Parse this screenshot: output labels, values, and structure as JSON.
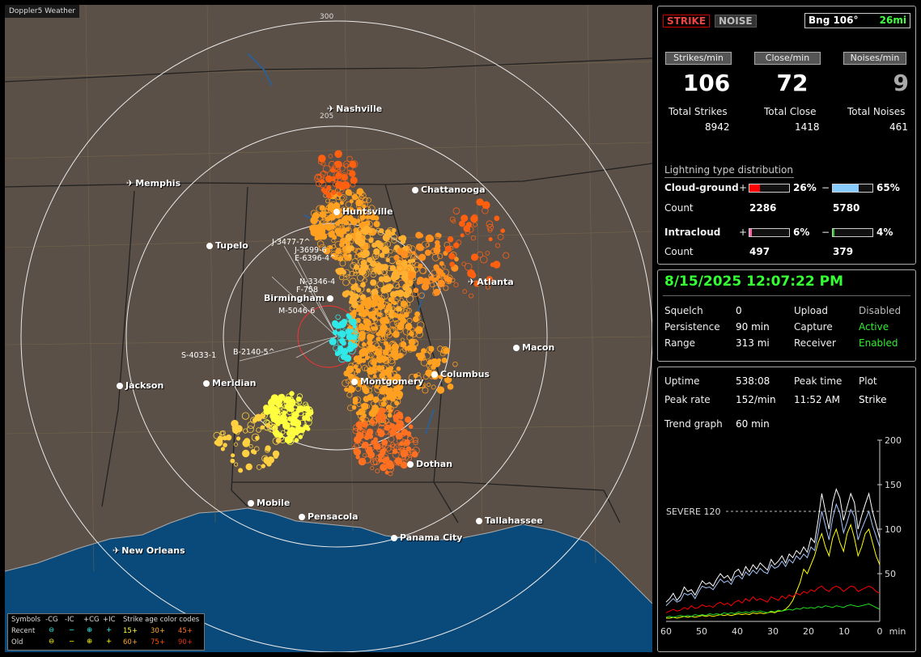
{
  "map": {
    "title": "Doppler5 Weather",
    "ring_labels": [
      {
        "text": "300",
        "id": "ring-300"
      },
      {
        "text": "205",
        "id": "ring-205"
      }
    ],
    "cities": [
      {
        "name": "Nashville",
        "icon": "airport-icon"
      },
      {
        "name": "Memphis",
        "icon": "airport-icon"
      },
      {
        "name": "Chattanooga",
        "icon": "city-dot"
      },
      {
        "name": "Huntsville",
        "icon": "city-dot"
      },
      {
        "name": "Tupelo",
        "icon": "city-dot"
      },
      {
        "name": "Atlanta",
        "icon": "airport-icon"
      },
      {
        "name": "Birmingham",
        "icon": "city-dot"
      },
      {
        "name": "Macon",
        "icon": "city-dot"
      },
      {
        "name": "Jackson",
        "icon": "city-dot"
      },
      {
        "name": "Meridian",
        "icon": "city-dot"
      },
      {
        "name": "Montgomery",
        "icon": "city-dot"
      },
      {
        "name": "Columbus",
        "icon": "city-dot"
      },
      {
        "name": "Dothan",
        "icon": "city-dot"
      },
      {
        "name": "Mobile",
        "icon": "city-dot"
      },
      {
        "name": "Pensacola",
        "icon": "city-dot"
      },
      {
        "name": "Tallahassee",
        "icon": "city-dot"
      },
      {
        "name": "Panama City",
        "icon": "city-dot"
      },
      {
        "name": "New Orleans",
        "icon": "airport-icon"
      }
    ],
    "sensor_labels": [
      "J-3477-7^",
      "J-3699-6",
      "E-6396-4^",
      "N-3346-4",
      "F-758",
      "M-5046-6",
      "S-4033-1",
      "B-2140-5^"
    ],
    "legend": {
      "symbols_label": "Symbols",
      "cols": [
        "-CG",
        "-IC",
        "+CG",
        "+IC"
      ],
      "recent_label": "Recent",
      "old_label": "Old",
      "age_label": "Strike age color codes",
      "recent_ages": [
        "15+",
        "30+",
        "45+"
      ],
      "old_ages": [
        "60+",
        "75+",
        "90+"
      ],
      "age_colors": [
        "#ffff40",
        "#ffb030",
        "#ff7020",
        "#ffa020",
        "#ff5010",
        "#e03010"
      ]
    }
  },
  "header": {
    "strike_btn": "STRIKE",
    "noise_btn": "NOISE",
    "bearing": "Bng 106°",
    "distance": "26mi"
  },
  "rates": {
    "strikes_label": "Strikes/min",
    "strikes": "106",
    "close_label": "Close/min",
    "close": "72",
    "noises_label": "Noises/min",
    "noises": "9"
  },
  "totals": {
    "strikes_label": "Total Strikes",
    "strikes": "8942",
    "close_label": "Total Close",
    "close": "1418",
    "noises_label": "Total Noises",
    "noises": "461"
  },
  "distribution": {
    "title": "Lightning type distribution",
    "cg_label": "Cloud-ground",
    "cg_pos_pct": "26%",
    "cg_pos_frac": 0.26,
    "cg_pos_color": "#ff0000",
    "cg_neg_pct": "65%",
    "cg_neg_frac": 0.65,
    "cg_neg_color": "#88ccff",
    "count_label": "Count",
    "cg_pos_count": "2286",
    "cg_neg_count": "5780",
    "ic_label": "Intracloud",
    "ic_pos_pct": "6%",
    "ic_pos_frac": 0.06,
    "ic_pos_color": "#ff66aa",
    "ic_neg_pct": "4%",
    "ic_neg_frac": 0.04,
    "ic_neg_color": "#22cc22",
    "ic_pos_count": "497",
    "ic_neg_count": "379",
    "plus": "+",
    "minus": "−"
  },
  "status": {
    "datetime": "8/15/2025 12:07:22 PM",
    "squelch_label": "Squelch",
    "squelch": "0",
    "persistence_label": "Persistence",
    "persistence": "90 min",
    "range_label": "Range",
    "range": "313 mi",
    "upload_label": "Upload",
    "upload": "Disabled",
    "capture_label": "Capture",
    "capture": "Active",
    "receiver_label": "Receiver",
    "receiver": "Enabled"
  },
  "stats": {
    "uptime_label": "Uptime",
    "uptime": "538:08",
    "peak_time_label": "Peak time",
    "peak_time": "11:52 AM",
    "plot_label": "Plot",
    "plot": "Strike",
    "peak_rate_label": "Peak rate",
    "peak_rate": "152/min",
    "trend_label": "Trend graph",
    "trend": "60 min"
  },
  "chart_data": {
    "type": "line",
    "xlabel": "min",
    "x_ticks": [
      "60",
      "50",
      "40",
      "30",
      "20",
      "10",
      "0"
    ],
    "y_ticks": [
      "200",
      "150",
      "100",
      "50"
    ],
    "xlim": [
      60,
      0
    ],
    "ylim": [
      0,
      200
    ],
    "threshold": {
      "label": "SEVERE 120",
      "value": 120
    },
    "series": [
      {
        "color": "#ffffff",
        "values": [
          18,
          22,
          28,
          20,
          25,
          35,
          30,
          32,
          26,
          34,
          42,
          38,
          40,
          36,
          44,
          50,
          45,
          48,
          42,
          52,
          55,
          48,
          58,
          52,
          60,
          55,
          62,
          58,
          54,
          66,
          60,
          64,
          70,
          62,
          72,
          68,
          76,
          72,
          80,
          74,
          90,
          85,
          110,
          140,
          120,
          100,
          130,
          145,
          135,
          110,
          125,
          140,
          130,
          100,
          115,
          128,
          140,
          120,
          105,
          90
        ]
      },
      {
        "color": "#a8c8ff",
        "values": [
          14,
          18,
          22,
          18,
          20,
          28,
          26,
          28,
          22,
          30,
          36,
          34,
          35,
          32,
          38,
          44,
          40,
          42,
          38,
          46,
          48,
          44,
          52,
          48,
          54,
          50,
          56,
          52,
          50,
          60,
          56,
          58,
          64,
          58,
          66,
          62,
          70,
          66,
          72,
          68,
          80,
          76,
          96,
          120,
          104,
          88,
          112,
          128,
          118,
          96,
          108,
          122,
          114,
          88,
          100,
          110,
          120,
          104,
          92,
          80
        ]
      },
      {
        "color": "#ffff00",
        "values": [
          0,
          0,
          1,
          0,
          1,
          2,
          1,
          2,
          1,
          2,
          3,
          2,
          3,
          2,
          3,
          4,
          3,
          4,
          3,
          4,
          5,
          4,
          5,
          4,
          6,
          5,
          6,
          5,
          6,
          7,
          6,
          8,
          8,
          10,
          14,
          20,
          30,
          40,
          55,
          50,
          60,
          70,
          85,
          95,
          80,
          70,
          90,
          100,
          85,
          75,
          95,
          105,
          90,
          70,
          80,
          95,
          100,
          85,
          70,
          60
        ]
      },
      {
        "color": "#ff0000",
        "values": [
          6,
          8,
          10,
          8,
          9,
          12,
          10,
          14,
          11,
          12,
          15,
          13,
          14,
          12,
          16,
          18,
          15,
          17,
          14,
          18,
          20,
          17,
          22,
          19,
          24,
          20,
          22,
          20,
          18,
          24,
          22,
          20,
          25,
          22,
          26,
          24,
          28,
          26,
          30,
          28,
          32,
          30,
          34,
          36,
          32,
          30,
          34,
          36,
          34,
          30,
          33,
          36,
          35,
          30,
          32,
          34,
          36,
          34,
          30,
          28
        ]
      },
      {
        "color": "#22dd22",
        "values": [
          1,
          2,
          1,
          2,
          3,
          2,
          3,
          2,
          4,
          3,
          4,
          3,
          5,
          4,
          5,
          4,
          6,
          5,
          6,
          5,
          7,
          6,
          7,
          6,
          8,
          7,
          8,
          7,
          6,
          8,
          7,
          9,
          8,
          9,
          10,
          9,
          11,
          10,
          12,
          11,
          12,
          11,
          13,
          12,
          14,
          13,
          12,
          14,
          13,
          12,
          14,
          15,
          14,
          13,
          14,
          15,
          16,
          14,
          12,
          10
        ]
      }
    ]
  }
}
